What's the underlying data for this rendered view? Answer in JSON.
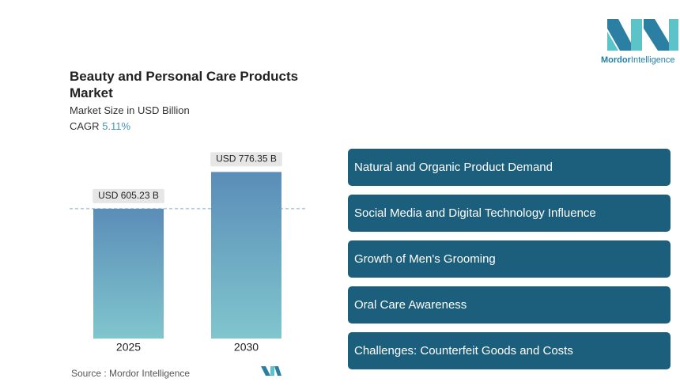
{
  "header": {
    "logo": {
      "brand": "Mordor",
      "suffix": "Intelligence"
    }
  },
  "chart_data": {
    "type": "bar",
    "title": "Beauty and Personal Care Products Market",
    "subtitle": "Market Size in USD Billion",
    "cagr_label": "CAGR",
    "cagr": "5.11%",
    "categories": [
      "2025",
      "2030"
    ],
    "values": [
      605.23,
      776.35
    ],
    "value_labels": [
      "USD 605.23 B",
      "USD 776.35 B"
    ],
    "ylim": [
      0,
      800
    ],
    "colors": [
      "#5b8db8",
      "#80c6cd"
    ],
    "reference_line": true
  },
  "source": "Source : Mordor Intelligence",
  "drivers": [
    "Natural and Organic Product Demand",
    "Social Media and Digital Technology Influence",
    "Growth of Men's Grooming",
    "Oral Care Awareness",
    "Challenges: Counterfeit Goods and Costs"
  ]
}
